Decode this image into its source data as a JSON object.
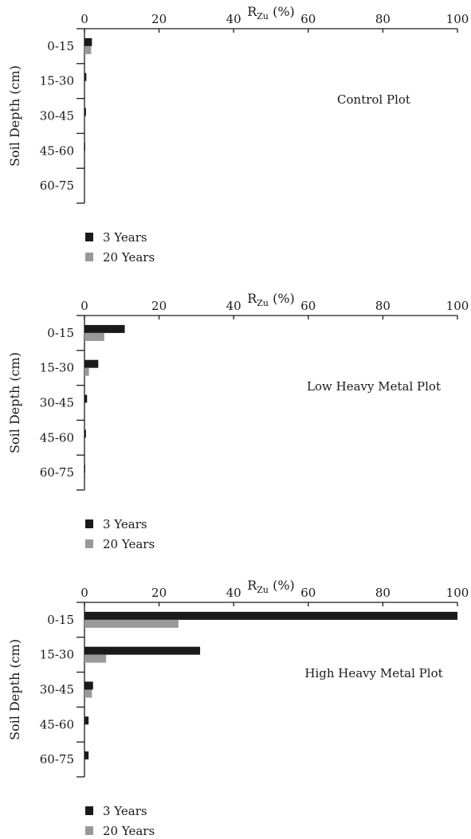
{
  "chart_data": [
    {
      "type": "bar",
      "orientation": "horizontal",
      "title": "Control Plot",
      "xlabel": {
        "main": "R",
        "sub": "Zu",
        "unit": " (%)"
      },
      "ylabel": "Soil Depth (cm)",
      "xlim": [
        0,
        100
      ],
      "xticks": [
        "0",
        "20",
        "40",
        "60",
        "80",
        "100"
      ],
      "categories": [
        "0-15",
        "15-30",
        "30-45",
        "45-60",
        "60-75"
      ],
      "series": [
        {
          "name": "3 Years",
          "color": "#1a1a1a",
          "values": [
            2.0,
            0.5,
            0.4,
            0.2,
            0.1
          ]
        },
        {
          "name": "20 Years",
          "color": "#999999",
          "values": [
            1.8,
            0.0,
            0.0,
            0.0,
            0.0
          ]
        }
      ]
    },
    {
      "type": "bar",
      "orientation": "horizontal",
      "title": "Low Heavy Metal Plot",
      "xlabel": {
        "main": "R",
        "sub": "Zu",
        "unit": " (%)"
      },
      "ylabel": "Soil Depth (cm)",
      "xlim": [
        0,
        100
      ],
      "xticks": [
        "0",
        "20",
        "40",
        "60",
        "80",
        "100"
      ],
      "categories": [
        "0-15",
        "15-30",
        "30-45",
        "45-60",
        "60-75"
      ],
      "series": [
        {
          "name": "3 Years",
          "color": "#1a1a1a",
          "values": [
            10.8,
            3.7,
            0.7,
            0.4,
            0.2
          ]
        },
        {
          "name": "20 Years",
          "color": "#999999",
          "values": [
            5.3,
            1.2,
            0.0,
            0.0,
            0.0
          ]
        }
      ]
    },
    {
      "type": "bar",
      "orientation": "horizontal",
      "title": "High Heavy Metal Plot",
      "xlabel": {
        "main": "R",
        "sub": "Zu",
        "unit": " (%)"
      },
      "ylabel": "Soil Depth (cm)",
      "xlim": [
        0,
        100
      ],
      "xticks": [
        "0",
        "20",
        "40",
        "60",
        "80",
        "100"
      ],
      "categories": [
        "0-15",
        "15-30",
        "30-45",
        "45-60",
        "60-75"
      ],
      "series": [
        {
          "name": "3 Years",
          "color": "#1a1a1a",
          "values": [
            100,
            31.0,
            2.3,
            1.1,
            1.1
          ]
        },
        {
          "name": "20 Years",
          "color": "#999999",
          "values": [
            25.2,
            5.8,
            2.0,
            0.0,
            0.0
          ]
        }
      ]
    }
  ]
}
